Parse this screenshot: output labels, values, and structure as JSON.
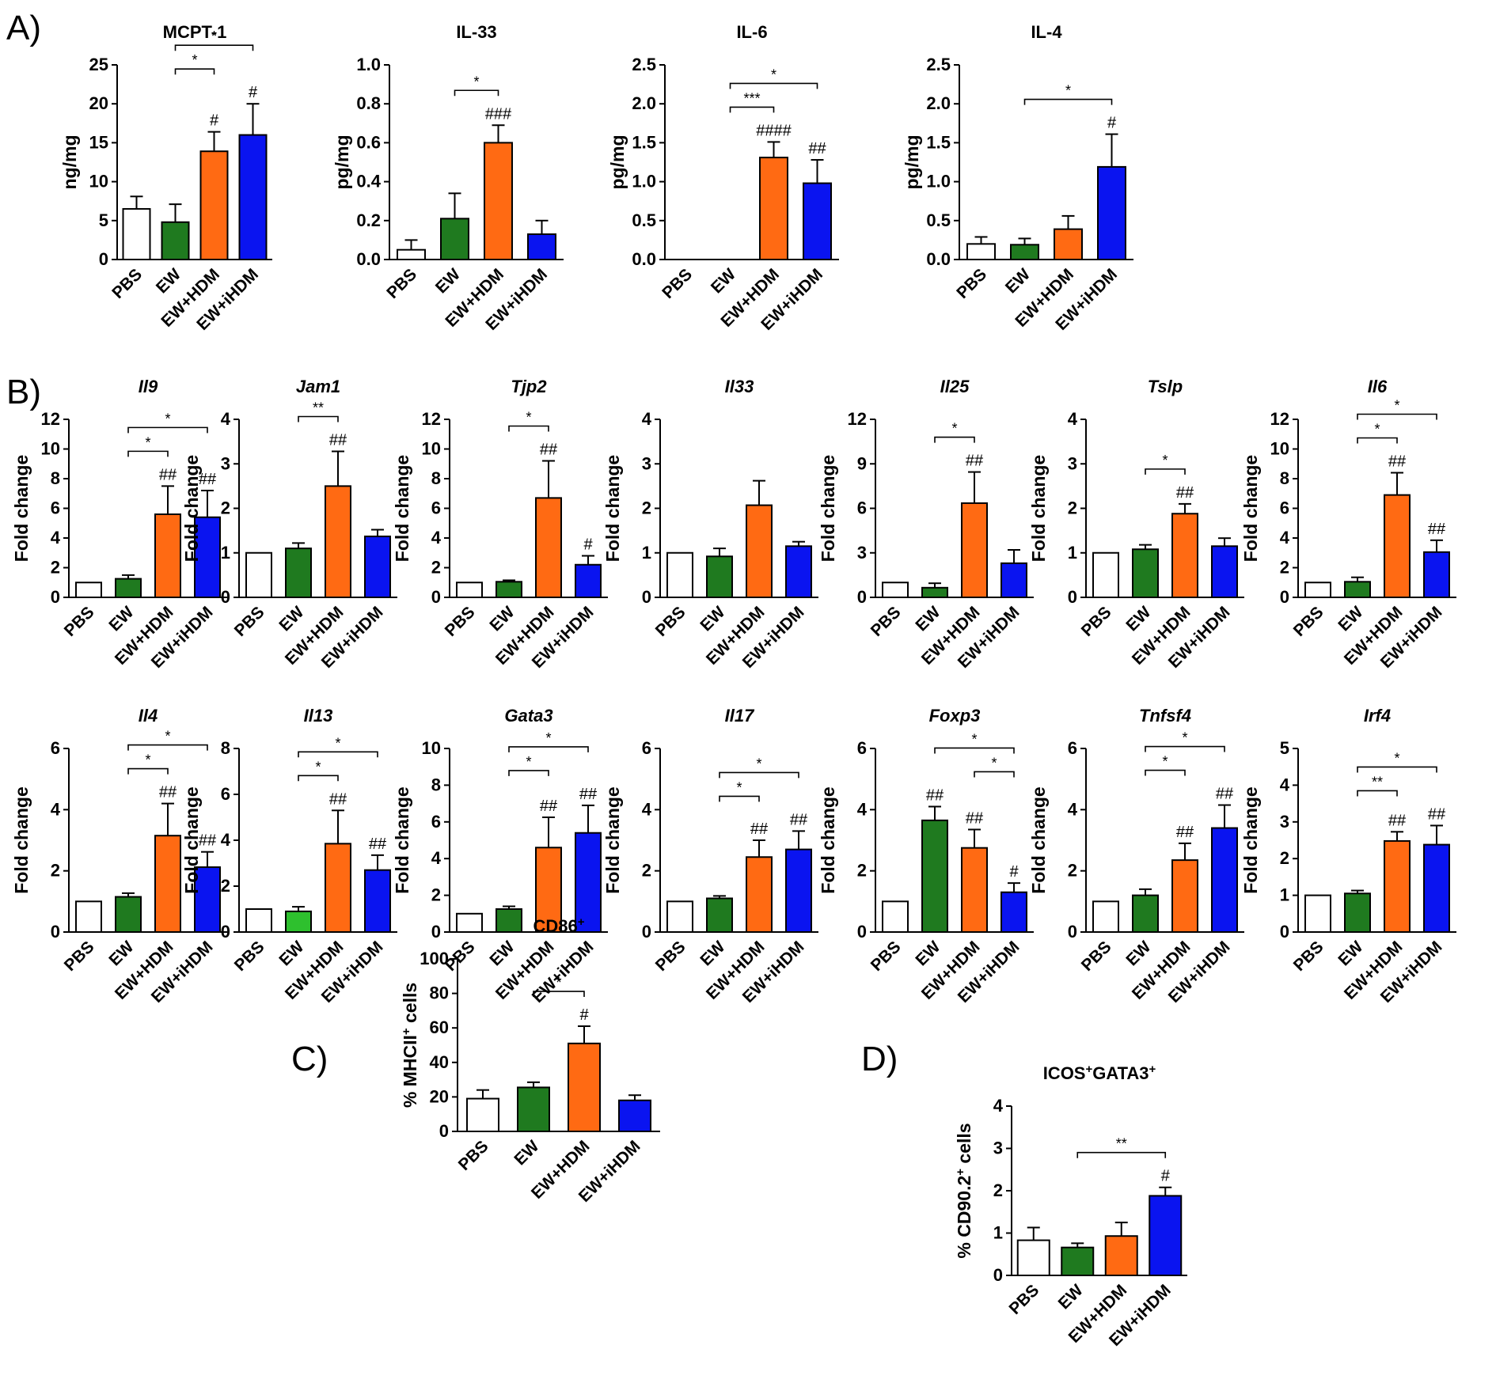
{
  "panel_labels": [
    "A)",
    "B)",
    "C)",
    "D)"
  ],
  "colors": {
    "PBS": "#ffffff",
    "EW": "#1f7a1f",
    "EW_bright": "#2ec02e",
    "EW+HDM": "#ff6a13",
    "EW+iHDM": "#0a14f0"
  },
  "chart_data": [
    {
      "id": "a1",
      "panel": "A)",
      "type": "bar",
      "title": "MCPT-1",
      "ylabel": "ng/mg",
      "categories": [
        "PBS",
        "EW",
        "EW+HDM",
        "EW+iHDM"
      ],
      "values": [
        6.5,
        4.8,
        13.9,
        16.0
      ],
      "errors": [
        1.6,
        2.3,
        2.5,
        4.0
      ],
      "ylim": [
        0,
        25
      ],
      "yticks": [
        "0",
        "5",
        "10",
        "15",
        "20",
        "25"
      ],
      "hash": [
        "",
        "",
        "#",
        "#"
      ],
      "brackets": [
        {
          "from": 1,
          "to": 2,
          "label": "*"
        },
        {
          "from": 1,
          "to": 3,
          "label": "*"
        }
      ]
    },
    {
      "id": "a2",
      "panel": "A)",
      "type": "bar",
      "title": "IL-33",
      "ylabel": "pg/mg",
      "categories": [
        "PBS",
        "EW",
        "EW+HDM",
        "EW+iHDM"
      ],
      "values": [
        0.05,
        0.21,
        0.6,
        0.13
      ],
      "errors": [
        0.05,
        0.13,
        0.09,
        0.07
      ],
      "ylim": [
        0,
        1
      ],
      "yticks": [
        "0.0",
        "0.2",
        "0.4",
        "0.6",
        "0.8",
        "1.0"
      ],
      "hash": [
        "",
        "",
        "###",
        ""
      ],
      "brackets": [
        {
          "from": 1,
          "to": 2,
          "label": "*"
        }
      ]
    },
    {
      "id": "a3",
      "panel": "A)",
      "type": "bar",
      "title": "IL-6",
      "ylabel": "pg/mg",
      "categories": [
        "PBS",
        "EW",
        "EW+HDM",
        "EW+iHDM"
      ],
      "values": [
        0,
        0,
        1.31,
        0.98
      ],
      "errors": [
        0,
        0,
        0.2,
        0.3
      ],
      "ylim": [
        0,
        2.5
      ],
      "yticks": [
        "0.0",
        "0.5",
        "1.0",
        "1.5",
        "2.0",
        "2.5"
      ],
      "hash": [
        "",
        "",
        "####",
        "##"
      ],
      "brackets": [
        {
          "from": 1,
          "to": 2,
          "label": "***"
        },
        {
          "from": 1,
          "to": 3,
          "label": "*"
        }
      ]
    },
    {
      "id": "a4",
      "panel": "A)",
      "type": "bar",
      "title": "IL-4",
      "ylabel": "pg/mg",
      "categories": [
        "PBS",
        "EW",
        "EW+HDM",
        "EW+iHDM"
      ],
      "values": [
        0.2,
        0.19,
        0.39,
        1.19
      ],
      "errors": [
        0.09,
        0.08,
        0.17,
        0.42
      ],
      "ylim": [
        0,
        2.5
      ],
      "yticks": [
        "0.0",
        "0.5",
        "1.0",
        "1.5",
        "2.0",
        "2.5"
      ],
      "hash": [
        "",
        "",
        "",
        "#"
      ],
      "brackets": [
        {
          "from": 1,
          "to": 3,
          "label": "*"
        }
      ]
    },
    {
      "id": "b1",
      "panel": "B)",
      "type": "bar",
      "title": "Il9",
      "italic": true,
      "ylabel": "Fold change",
      "categories": [
        "PBS",
        "EW",
        "EW+HDM",
        "EW+iHDM"
      ],
      "values": [
        1.0,
        1.25,
        5.6,
        5.4
      ],
      "errors": [
        0,
        0.25,
        1.9,
        1.8
      ],
      "ylim": [
        0,
        12
      ],
      "yticks": [
        "0",
        "2",
        "4",
        "6",
        "8",
        "10",
        "12"
      ],
      "hash": [
        "",
        "",
        "##",
        "##"
      ],
      "brackets": [
        {
          "from": 1,
          "to": 2,
          "label": "*"
        },
        {
          "from": 1,
          "to": 3,
          "label": "*"
        }
      ]
    },
    {
      "id": "b2",
      "panel": "B)",
      "type": "bar",
      "title": "Jam1",
      "italic": true,
      "ylabel": "Fold change",
      "categories": [
        "PBS",
        "EW",
        "EW+HDM",
        "EW+iHDM"
      ],
      "values": [
        1.0,
        1.1,
        2.5,
        1.37
      ],
      "errors": [
        0,
        0.12,
        0.78,
        0.15
      ],
      "ylim": [
        0,
        4
      ],
      "yticks": [
        "0",
        "1",
        "2",
        "3",
        "4"
      ],
      "hash": [
        "",
        "",
        "##",
        ""
      ],
      "brackets": [
        {
          "from": 1,
          "to": 2,
          "label": "**"
        }
      ]
    },
    {
      "id": "b3",
      "panel": "B)",
      "type": "bar",
      "title": "Tjp2",
      "italic": true,
      "ylabel": "Fold change",
      "categories": [
        "PBS",
        "EW",
        "EW+HDM",
        "EW+iHDM"
      ],
      "values": [
        1.0,
        1.05,
        6.7,
        2.2
      ],
      "errors": [
        0,
        0.1,
        2.5,
        0.6
      ],
      "ylim": [
        0,
        12
      ],
      "yticks": [
        "0",
        "2",
        "4",
        "6",
        "8",
        "10",
        "12"
      ],
      "hash": [
        "",
        "",
        "##",
        "#"
      ],
      "brackets": [
        {
          "from": 1,
          "to": 2,
          "label": "*"
        }
      ]
    },
    {
      "id": "b4",
      "panel": "B)",
      "type": "bar",
      "title": "Il33",
      "italic": true,
      "ylabel": "Fold change",
      "categories": [
        "PBS",
        "EW",
        "EW+HDM",
        "EW+iHDM"
      ],
      "values": [
        1.0,
        0.92,
        2.07,
        1.15
      ],
      "errors": [
        0,
        0.18,
        0.55,
        0.1
      ],
      "ylim": [
        0,
        4
      ],
      "yticks": [
        "0",
        "1",
        "2",
        "3",
        "4"
      ],
      "hash": [
        "",
        "",
        "",
        ""
      ],
      "brackets": []
    },
    {
      "id": "b5",
      "panel": "B)",
      "type": "bar",
      "title": "Il25",
      "italic": true,
      "ylabel": "Fold change",
      "categories": [
        "PBS",
        "EW",
        "EW+HDM",
        "EW+iHDM"
      ],
      "values": [
        1.0,
        0.65,
        6.35,
        2.3
      ],
      "errors": [
        0,
        0.3,
        2.1,
        0.9
      ],
      "ylim": [
        0,
        12
      ],
      "yticks": [
        "0",
        "3",
        "6",
        "9",
        "12"
      ],
      "hash": [
        "",
        "",
        "##",
        ""
      ],
      "brackets": [
        {
          "from": 1,
          "to": 2,
          "label": "*"
        }
      ]
    },
    {
      "id": "b6",
      "panel": "B)",
      "type": "bar",
      "title": "Tslp",
      "italic": true,
      "ylabel": "Fold change",
      "categories": [
        "PBS",
        "EW",
        "EW+HDM",
        "EW+iHDM"
      ],
      "values": [
        1.0,
        1.08,
        1.88,
        1.15
      ],
      "errors": [
        0,
        0.1,
        0.22,
        0.18
      ],
      "ylim": [
        0,
        4
      ],
      "yticks": [
        "0",
        "1",
        "2",
        "3",
        "4"
      ],
      "hash": [
        "",
        "",
        "##",
        ""
      ],
      "brackets": [
        {
          "from": 1,
          "to": 2,
          "label": "*"
        }
      ]
    },
    {
      "id": "b7",
      "panel": "B)",
      "type": "bar",
      "title": "Il6",
      "italic": true,
      "ylabel": "Fold change",
      "categories": [
        "PBS",
        "EW",
        "EW+HDM",
        "EW+iHDM"
      ],
      "values": [
        1.0,
        1.05,
        6.9,
        3.05
      ],
      "errors": [
        0,
        0.3,
        1.5,
        0.8
      ],
      "ylim": [
        0,
        12
      ],
      "yticks": [
        "0",
        "2",
        "4",
        "6",
        "8",
        "10",
        "12"
      ],
      "hash": [
        "",
        "",
        "##",
        "##"
      ],
      "brackets": [
        {
          "from": 1,
          "to": 2,
          "label": "*"
        },
        {
          "from": 1,
          "to": 3,
          "label": "*"
        }
      ]
    },
    {
      "id": "b8",
      "panel": "B)",
      "type": "bar",
      "title": "Il4",
      "italic": true,
      "ylabel": "Fold change",
      "categories": [
        "PBS",
        "EW",
        "EW+HDM",
        "EW+iHDM"
      ],
      "values": [
        1.0,
        1.15,
        3.15,
        2.12
      ],
      "errors": [
        0,
        0.12,
        1.05,
        0.5
      ],
      "ylim": [
        0,
        6
      ],
      "yticks": [
        "0",
        "2",
        "4",
        "6"
      ],
      "hash": [
        "",
        "",
        "##",
        "##"
      ],
      "brackets": [
        {
          "from": 1,
          "to": 2,
          "label": "*"
        },
        {
          "from": 1,
          "to": 3,
          "label": "*"
        }
      ]
    },
    {
      "id": "b9",
      "panel": "B)",
      "type": "bar",
      "title": "Il13",
      "italic": true,
      "ylabel": "Fold change",
      "categories": [
        "PBS",
        "EW",
        "EW+HDM",
        "EW+iHDM"
      ],
      "values": [
        1.0,
        0.9,
        3.85,
        2.7
      ],
      "errors": [
        0,
        0.2,
        1.45,
        0.65
      ],
      "ylim": [
        0,
        8
      ],
      "yticks": [
        "0",
        "2",
        "4",
        "6",
        "8"
      ],
      "hash": [
        "",
        "",
        "##",
        "##"
      ],
      "brackets": [
        {
          "from": 1,
          "to": 2,
          "label": "*"
        },
        {
          "from": 1,
          "to": 3,
          "label": "*"
        }
      ],
      "bright_ew": true
    },
    {
      "id": "b10",
      "panel": "B)",
      "type": "bar",
      "title": "Gata3",
      "italic": true,
      "ylabel": "Fold change",
      "categories": [
        "PBS",
        "EW",
        "EW+HDM",
        "EW+iHDM"
      ],
      "values": [
        1.0,
        1.25,
        4.6,
        5.4
      ],
      "errors": [
        0,
        0.15,
        1.65,
        1.5
      ],
      "ylim": [
        0,
        10
      ],
      "yticks": [
        "0",
        "2",
        "4",
        "6",
        "8",
        "10"
      ],
      "hash": [
        "",
        "",
        "##",
        "##"
      ],
      "brackets": [
        {
          "from": 1,
          "to": 2,
          "label": "*"
        },
        {
          "from": 1,
          "to": 3,
          "label": "*"
        }
      ]
    },
    {
      "id": "b11",
      "panel": "B)",
      "type": "bar",
      "title": "Il17",
      "italic": true,
      "ylabel": "Fold change",
      "categories": [
        "PBS",
        "EW",
        "EW+HDM",
        "EW+iHDM"
      ],
      "values": [
        1.0,
        1.1,
        2.45,
        2.7
      ],
      "errors": [
        0,
        0.08,
        0.55,
        0.6
      ],
      "ylim": [
        0,
        6
      ],
      "yticks": [
        "0",
        "2",
        "4",
        "6"
      ],
      "hash": [
        "",
        "",
        "##",
        "##"
      ],
      "brackets": [
        {
          "from": 1,
          "to": 2,
          "label": "*"
        },
        {
          "from": 1,
          "to": 3,
          "label": "*"
        }
      ]
    },
    {
      "id": "b12",
      "panel": "B)",
      "type": "bar",
      "title": "Foxp3",
      "italic": true,
      "ylabel": "Fold change",
      "categories": [
        "PBS",
        "EW",
        "EW+HDM",
        "EW+iHDM"
      ],
      "values": [
        1.0,
        3.65,
        2.75,
        1.3
      ],
      "errors": [
        0,
        0.45,
        0.6,
        0.3
      ],
      "ylim": [
        0,
        6
      ],
      "yticks": [
        "0",
        "2",
        "4",
        "6"
      ],
      "hash": [
        "",
        "##",
        "##",
        "#"
      ],
      "brackets": [
        {
          "from": 2,
          "to": 3,
          "label": "*"
        },
        {
          "from": 1,
          "to": 3,
          "label": "*"
        }
      ]
    },
    {
      "id": "b13",
      "panel": "B)",
      "type": "bar",
      "title": "Tnfsf4",
      "italic": true,
      "ylabel": "Fold change",
      "categories": [
        "PBS",
        "EW",
        "EW+HDM",
        "EW+iHDM"
      ],
      "values": [
        1.0,
        1.2,
        2.35,
        3.4
      ],
      "errors": [
        0,
        0.2,
        0.55,
        0.75
      ],
      "ylim": [
        0,
        6
      ],
      "yticks": [
        "0",
        "2",
        "4",
        "6"
      ],
      "hash": [
        "",
        "",
        "##",
        "##"
      ],
      "brackets": [
        {
          "from": 1,
          "to": 2,
          "label": "*"
        },
        {
          "from": 1,
          "to": 3,
          "label": "*"
        }
      ]
    },
    {
      "id": "b14",
      "panel": "B)",
      "type": "bar",
      "title": "Irf4",
      "italic": true,
      "ylabel": "Fold change",
      "categories": [
        "PBS",
        "EW",
        "EW+HDM",
        "EW+iHDM"
      ],
      "values": [
        1.0,
        1.05,
        2.48,
        2.38
      ],
      "errors": [
        0,
        0.08,
        0.25,
        0.52
      ],
      "ylim": [
        0,
        5
      ],
      "yticks": [
        "0",
        "1",
        "2",
        "3",
        "4",
        "5"
      ],
      "hash": [
        "",
        "",
        "##",
        "##"
      ],
      "brackets": [
        {
          "from": 1,
          "to": 2,
          "label": "**"
        },
        {
          "from": 1,
          "to": 3,
          "label": "*"
        }
      ]
    },
    {
      "id": "c",
      "panel": "C)",
      "type": "bar",
      "title": "CD86",
      "title_sup": "+",
      "ylabel": "% MHCII",
      "ylabel_sup": "+",
      "ylabel_tail": " cells",
      "categories": [
        "PBS",
        "EW",
        "EW+HDM",
        "EW+iHDM"
      ],
      "values": [
        19,
        25.5,
        51,
        18
      ],
      "errors": [
        5,
        3,
        10,
        3
      ],
      "ylim": [
        0,
        100
      ],
      "yticks": [
        "0",
        "20",
        "40",
        "60",
        "80",
        "100"
      ],
      "hash": [
        "",
        "",
        "#",
        ""
      ],
      "brackets": [
        {
          "from": 1,
          "to": 2,
          "label": "*"
        }
      ]
    },
    {
      "id": "d",
      "panel": "D)",
      "type": "bar",
      "title": "ICOS",
      "title_sup": "+",
      "title2": "GATA3",
      "title2_sup": "+",
      "ylabel": "% CD90.2",
      "ylabel_sup": "+",
      "ylabel_tail": " cells",
      "categories": [
        "PBS",
        "EW",
        "EW+HDM",
        "EW+iHDM"
      ],
      "values": [
        0.83,
        0.66,
        0.93,
        1.88
      ],
      "errors": [
        0.3,
        0.1,
        0.32,
        0.2
      ],
      "ylim": [
        0,
        4
      ],
      "yticks": [
        "0",
        "1",
        "2",
        "3",
        "4"
      ],
      "hash": [
        "",
        "",
        "",
        "#"
      ],
      "brackets": [
        {
          "from": 1,
          "to": 3,
          "label": "**"
        }
      ]
    }
  ]
}
